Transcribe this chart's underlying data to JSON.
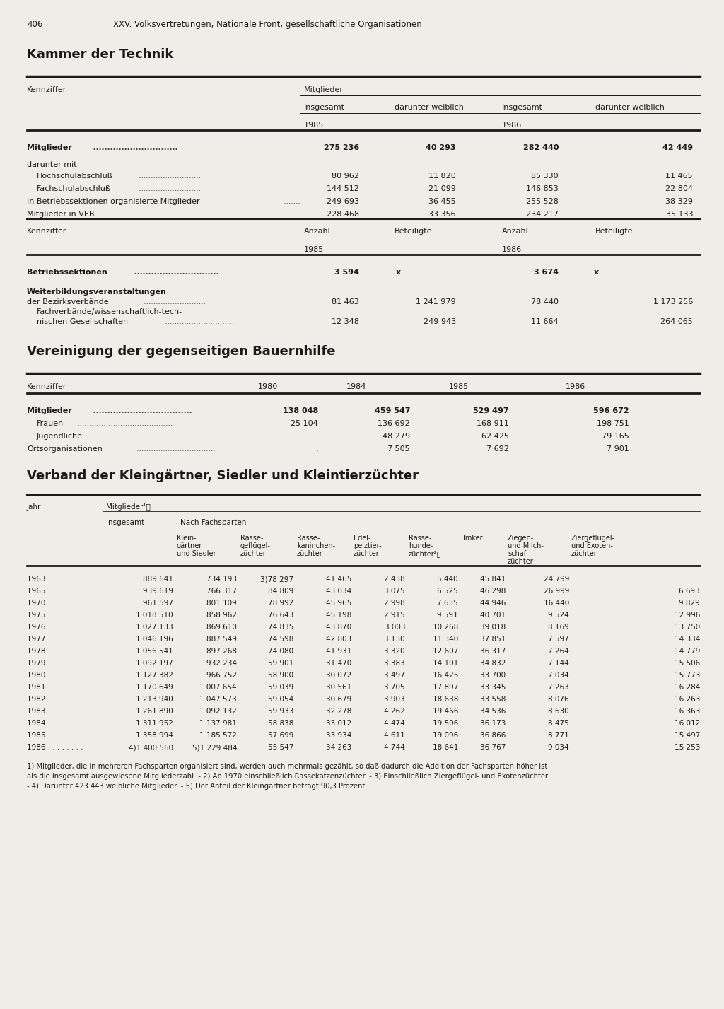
{
  "page_number": "406",
  "page_header": "XXV. Volksvertretungen, Nationale Front, gesellschaftliche Organisationen",
  "bg_color": "#f0ede8",
  "section1_title": "Kammer der Technik",
  "section2_title": "Vereinigung der gegenseitigen Bauernhilfe",
  "section3_title": "Verband der Kleingärtner, Siedler und Kleintierzüchter",
  "t1_data": [
    [
      "Mitglieder",
      true,
      "275 236",
      "40 293",
      "282 440",
      "42 449"
    ],
    [
      "darunter mit",
      false,
      "",
      "",
      "",
      ""
    ],
    [
      "  Hochschulabschluß",
      false,
      "80 962",
      "11 820",
      "85 330",
      "11 465"
    ],
    [
      "  Fachschulabschluß",
      false,
      "144 512",
      "21 099",
      "146 853",
      "22 804"
    ],
    [
      "In Betriebssektionen organisierte Mitglieder",
      false,
      "249 693",
      "36 455",
      "255 528",
      "38 329"
    ],
    [
      "Mitglieder in VEB",
      false,
      "228 468",
      "33 356",
      "234 217",
      "35 133"
    ]
  ],
  "t2_data": [
    [
      "Betriebssektionen",
      true,
      "3 594",
      "x",
      "3 674",
      "x"
    ],
    [
      "Weiterbildungsveranstaltungen",
      false,
      "",
      "",
      "",
      ""
    ],
    [
      "der Bezirksverbände",
      false,
      "81 463",
      "1 241 979",
      "78 440",
      "1 173 256"
    ],
    [
      "  Fachverbände/wissenschaftlich-tech-",
      false,
      "",
      "",
      "",
      ""
    ],
    [
      "  nischen Gesellschaften",
      false,
      "12 348",
      "249 943",
      "11 664",
      "264 065"
    ]
  ],
  "t3_data": [
    [
      "Mitglieder",
      true,
      "138 048",
      "459 547",
      "529 497",
      "596 672"
    ],
    [
      "  Frauen",
      false,
      "25 104",
      "136 692",
      "168 911",
      "198 751"
    ],
    [
      "  Jugendliche",
      false,
      ".",
      "48 279",
      "62 425",
      "79 165"
    ],
    [
      "Ortsorganisationen",
      false,
      ".",
      "7 505",
      "7 692",
      "7 901"
    ]
  ],
  "t4_data": [
    [
      "1963 . . . . . . . .",
      "889 641",
      "734 193",
      "3)78 297",
      "41 465",
      "2 438",
      "5 440",
      "45 841",
      "24 799",
      ""
    ],
    [
      "1965 . . . . . . . .",
      "939 619",
      "766 317",
      "84 809",
      "43 034",
      "3 075",
      "6 525",
      "46 298",
      "26 999",
      "6 693"
    ],
    [
      "1970 . . . . . . . .",
      "961 597",
      "801 109",
      "78 992",
      "45 965",
      "2 998",
      "7 635",
      "44 946",
      "16 440",
      "9 829"
    ],
    [
      "1975 . . . . . . . .",
      "1 018 510",
      "858 962",
      "76 643",
      "45 198",
      "2 915",
      "9 591",
      "40 701",
      "9 524",
      "12 996"
    ],
    [
      "1976 . . . . . . . .",
      "1 027 133",
      "869 610",
      "74 835",
      "43 870",
      "3 003",
      "10 268",
      "39 018",
      "8 169",
      "13 750"
    ],
    [
      "1977 . . . . . . . .",
      "1 046 196",
      "887 549",
      "74 598",
      "42 803",
      "3 130",
      "11 340",
      "37 851",
      "7 597",
      "14 334"
    ],
    [
      "1978 . . . . . . . .",
      "1 056 541",
      "897 268",
      "74 080",
      "41 931",
      "3 320",
      "12 607",
      "36 317",
      "7 264",
      "14 779"
    ],
    [
      "1979 . . . . . . . .",
      "1 092 197",
      "932 234",
      "59 901",
      "31 470",
      "3 383",
      "14 101",
      "34 832",
      "7 144",
      "15 506"
    ],
    [
      "1980 . . . . . . . .",
      "1 127 382",
      "966 752",
      "58 900",
      "30 072",
      "3 497",
      "16 425",
      "33 700",
      "7 034",
      "15 773"
    ],
    [
      "1981 . . . . . . . .",
      "1 170 649",
      "1 007 654",
      "59 039",
      "30 561",
      "3 705",
      "17 897",
      "33 345",
      "7 263",
      "16 284"
    ],
    [
      "1982 . . . . . . . .",
      "1 213 940",
      "1 047 573",
      "59 054",
      "30 679",
      "3 903",
      "18 638",
      "33 558",
      "8 076",
      "16 263"
    ],
    [
      "1983 . . . . . . . .",
      "1 261 890",
      "1 092 132",
      "59 933",
      "32 278",
      "4 262",
      "19 466",
      "34 536",
      "8 630",
      "16 363"
    ],
    [
      "1984 . . . . . . . .",
      "1 311 952",
      "1 137 981",
      "58 838",
      "33 012",
      "4 474",
      "19 506",
      "36 173",
      "8 475",
      "16 012"
    ],
    [
      "1985 . . . . . . . .",
      "1 358 994",
      "1 185 572",
      "57 699",
      "33 934",
      "4 611",
      "19 096",
      "36 866",
      "8 771",
      "15 497"
    ],
    [
      "1986 . . . . . . . .",
      "4)1 400 560",
      "5)1 229 484",
      "55 547",
      "34 263",
      "4 744",
      "18 641",
      "36 767",
      "9 034",
      "15 253"
    ]
  ],
  "footnotes": [
    "1) Mitglieder, die in mehreren Fachsparten organisiert sind, werden auch mehrmals gezählt, so daß dadurch die Addition der Fachsparten höher ist",
    "als die insgesamt ausgewiesene Mitgliederzahl. - 2) Ab 1970 einschließlich Rassekatzenzüchter. - 3) Einschließlich Ziergeflügel- und Exotenzüchter.",
    "- 4) Darunter 423 443 weibliche Mitglieder. - 5) Der Anteil der Kleingärtner beträgt 90,3 Prozent."
  ]
}
